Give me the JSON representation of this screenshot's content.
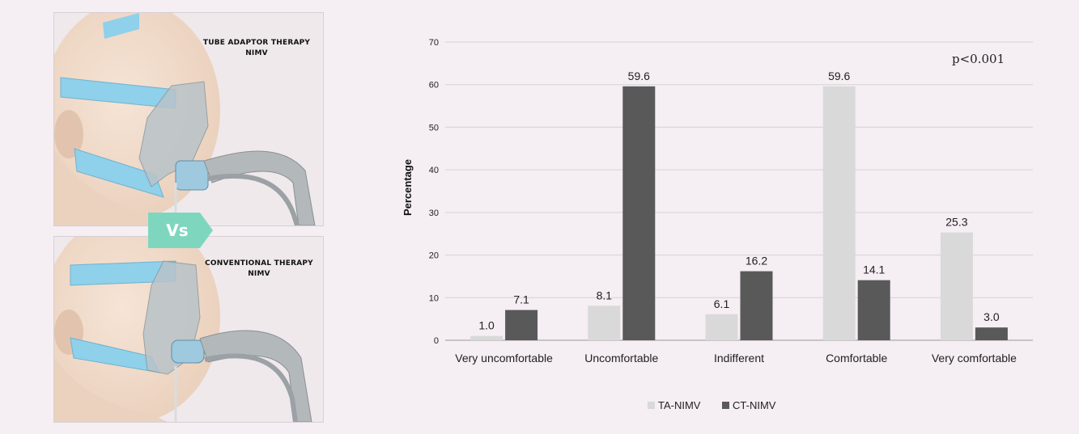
{
  "figure": {
    "top_panel": {
      "line1": "TUBE ADAPTOR THERAPY",
      "line2": "NIMV"
    },
    "bottom_panel": {
      "line1": "CONVENTIONAL THERAPY",
      "line2": "NIMV"
    },
    "vs_label": "Vs",
    "colors": {
      "vs_badge": "#7fd6bf",
      "strap": "#8fd0ea",
      "mask": "#b9c3c8"
    }
  },
  "chart_data": {
    "type": "bar",
    "categories": [
      "Very uncomfortable",
      "Uncomfortable",
      "Indifferent",
      "Comfortable",
      "Very comfortable"
    ],
    "series": [
      {
        "name": "TA-NIMV",
        "values": [
          1.0,
          8.1,
          6.1,
          59.6,
          25.3
        ],
        "color": "#d9d9d9"
      },
      {
        "name": "CT-NIMV",
        "values": [
          7.1,
          59.6,
          16.2,
          14.1,
          3.0
        ],
        "color": "#595959"
      }
    ],
    "data_labels": [
      [
        "1.0",
        "8.1",
        "6.1",
        "59.6",
        "25.3"
      ],
      [
        "7.1",
        "59.6",
        "16.2",
        "14.1",
        "3.0"
      ]
    ],
    "ylabel": "Percentage",
    "ylim": [
      0,
      70
    ],
    "yticks": [
      0,
      10,
      20,
      30,
      40,
      50,
      60,
      70
    ],
    "grid": true,
    "legend_position": "bottom",
    "annotation": "p<0.001"
  }
}
